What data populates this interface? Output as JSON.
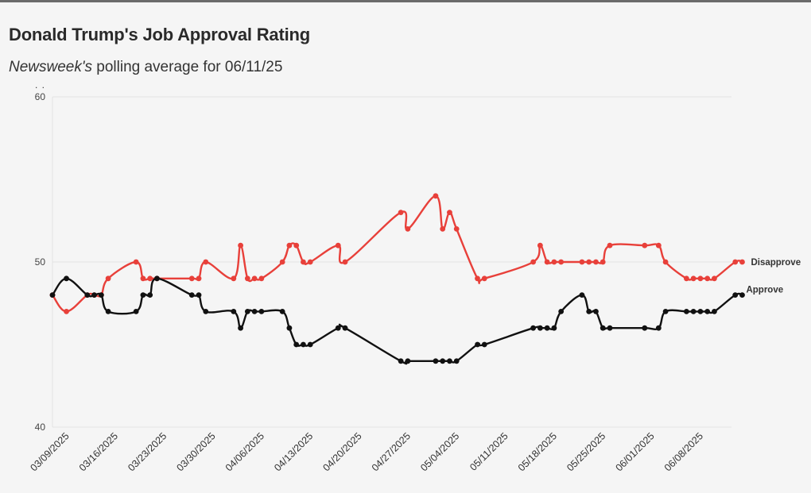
{
  "header": {
    "title": "Donald Trump's Job Approval Rating",
    "subtitle_italic": "Newsweek's",
    "subtitle_rest": " polling average for 06/11/25",
    "dots": ". ."
  },
  "chart_data": {
    "type": "line",
    "title": "Donald Trump's Job Approval Rating",
    "subtitle": "Newsweek's polling average for 06/11/25",
    "ylim": [
      40,
      60
    ],
    "y_ticks": [
      40,
      50,
      60
    ],
    "xlim": [
      "2025-03-07",
      "2025-06-11"
    ],
    "x_ticks": [
      "03/09/2025",
      "03/16/2025",
      "03/23/2025",
      "03/30/2025",
      "04/06/2025",
      "04/13/2025",
      "04/20/2025",
      "04/27/2025",
      "05/04/2025",
      "05/11/2025",
      "05/18/2025",
      "05/25/2025",
      "06/01/2025",
      "06/08/2025"
    ],
    "grid": true,
    "series": [
      {
        "name": "Disapprove",
        "color": "#e8403a",
        "points": [
          [
            "2025-03-07",
            48
          ],
          [
            "2025-03-09",
            47
          ],
          [
            "2025-03-12",
            48
          ],
          [
            "2025-03-13",
            48
          ],
          [
            "2025-03-14",
            48
          ],
          [
            "2025-03-15",
            49
          ],
          [
            "2025-03-19",
            50
          ],
          [
            "2025-03-20",
            49
          ],
          [
            "2025-03-21",
            49
          ],
          [
            "2025-03-22",
            49
          ],
          [
            "2025-03-27",
            49
          ],
          [
            "2025-03-28",
            49
          ],
          [
            "2025-03-29",
            50
          ],
          [
            "2025-04-02",
            49
          ],
          [
            "2025-04-03",
            51
          ],
          [
            "2025-04-04",
            49
          ],
          [
            "2025-04-05",
            49
          ],
          [
            "2025-04-06",
            49
          ],
          [
            "2025-04-09",
            50
          ],
          [
            "2025-04-10",
            51
          ],
          [
            "2025-04-11",
            51
          ],
          [
            "2025-04-12",
            50
          ],
          [
            "2025-04-13",
            50
          ],
          [
            "2025-04-17",
            51
          ],
          [
            "2025-04-18",
            50
          ],
          [
            "2025-04-26",
            53
          ],
          [
            "2025-04-27",
            52
          ],
          [
            "2025-05-01",
            54
          ],
          [
            "2025-05-02",
            52
          ],
          [
            "2025-05-03",
            53
          ],
          [
            "2025-05-04",
            52
          ],
          [
            "2025-05-07",
            49
          ],
          [
            "2025-05-08",
            49
          ],
          [
            "2025-05-15",
            50
          ],
          [
            "2025-05-16",
            51
          ],
          [
            "2025-05-17",
            50
          ],
          [
            "2025-05-18",
            50
          ],
          [
            "2025-05-19",
            50
          ],
          [
            "2025-05-22",
            50
          ],
          [
            "2025-05-23",
            50
          ],
          [
            "2025-05-24",
            50
          ],
          [
            "2025-05-25",
            50
          ],
          [
            "2025-05-26",
            51
          ],
          [
            "2025-05-31",
            51
          ],
          [
            "2025-06-02",
            51
          ],
          [
            "2025-06-03",
            50
          ],
          [
            "2025-06-06",
            49
          ],
          [
            "2025-06-07",
            49
          ],
          [
            "2025-06-08",
            49
          ],
          [
            "2025-06-09",
            49
          ],
          [
            "2025-06-10",
            49
          ],
          [
            "2025-06-13",
            50
          ],
          [
            "2025-06-14",
            50
          ]
        ]
      },
      {
        "name": "Approve",
        "color": "#111111",
        "points": [
          [
            "2025-03-07",
            48
          ],
          [
            "2025-03-09",
            49
          ],
          [
            "2025-03-12",
            48
          ],
          [
            "2025-03-13",
            48
          ],
          [
            "2025-03-14",
            48
          ],
          [
            "2025-03-15",
            47
          ],
          [
            "2025-03-19",
            47
          ],
          [
            "2025-03-20",
            48
          ],
          [
            "2025-03-21",
            48
          ],
          [
            "2025-03-22",
            49
          ],
          [
            "2025-03-27",
            48
          ],
          [
            "2025-03-28",
            48
          ],
          [
            "2025-03-29",
            47
          ],
          [
            "2025-04-02",
            47
          ],
          [
            "2025-04-03",
            46
          ],
          [
            "2025-04-04",
            47
          ],
          [
            "2025-04-05",
            47
          ],
          [
            "2025-04-06",
            47
          ],
          [
            "2025-04-09",
            47
          ],
          [
            "2025-04-10",
            46
          ],
          [
            "2025-04-11",
            45
          ],
          [
            "2025-04-12",
            45
          ],
          [
            "2025-04-13",
            45
          ],
          [
            "2025-04-17",
            46
          ],
          [
            "2025-04-18",
            46
          ],
          [
            "2025-04-26",
            44
          ],
          [
            "2025-04-27",
            44
          ],
          [
            "2025-05-01",
            44
          ],
          [
            "2025-05-02",
            44
          ],
          [
            "2025-05-03",
            44
          ],
          [
            "2025-05-04",
            44
          ],
          [
            "2025-05-07",
            45
          ],
          [
            "2025-05-08",
            45
          ],
          [
            "2025-05-15",
            46
          ],
          [
            "2025-05-16",
            46
          ],
          [
            "2025-05-17",
            46
          ],
          [
            "2025-05-18",
            46
          ],
          [
            "2025-05-19",
            47
          ],
          [
            "2025-05-22",
            48
          ],
          [
            "2025-05-23",
            47
          ],
          [
            "2025-05-24",
            47
          ],
          [
            "2025-05-25",
            46
          ],
          [
            "2025-05-26",
            46
          ],
          [
            "2025-05-31",
            46
          ],
          [
            "2025-06-02",
            46
          ],
          [
            "2025-06-03",
            47
          ],
          [
            "2025-06-06",
            47
          ],
          [
            "2025-06-07",
            47
          ],
          [
            "2025-06-08",
            47
          ],
          [
            "2025-06-09",
            47
          ],
          [
            "2025-06-10",
            47
          ],
          [
            "2025-06-13",
            48
          ],
          [
            "2025-06-14",
            48
          ]
        ]
      }
    ]
  }
}
